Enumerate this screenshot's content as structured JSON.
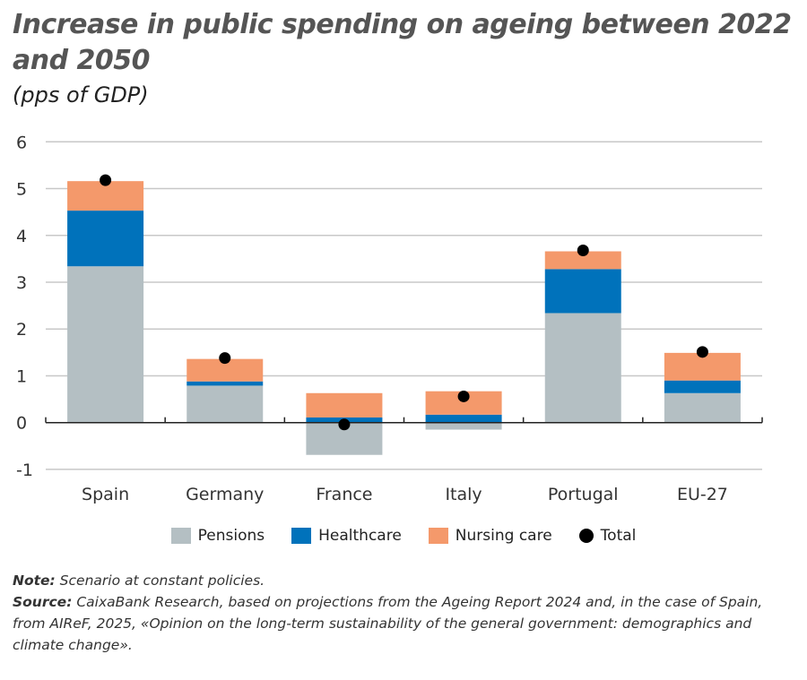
{
  "chart_data": {
    "type": "bar",
    "stacked": true,
    "title": "Increase in public spending on ageing between 2022 and 2050",
    "subtitle": "(pps of GDP)",
    "categories": [
      "Spain",
      "Germany",
      "France",
      "Italy",
      "Portugal",
      "EU-27"
    ],
    "series": [
      {
        "name": "Pensions",
        "color": "#b4bfc3",
        "values": [
          3.34,
          0.79,
          -0.69,
          -0.15,
          2.34,
          0.63
        ]
      },
      {
        "name": "Healthcare",
        "color": "#0072bb",
        "values": [
          1.19,
          0.09,
          0.11,
          0.17,
          0.94,
          0.27
        ]
      },
      {
        "name": "Nursing care",
        "color": "#f4996b",
        "values": [
          0.63,
          0.48,
          0.52,
          0.5,
          0.38,
          0.59
        ]
      }
    ],
    "total": {
      "name": "Total",
      "color": "#000000",
      "values": [
        5.18,
        1.38,
        -0.04,
        0.56,
        3.68,
        1.51
      ]
    },
    "ylim": [
      -1,
      6
    ],
    "yticks": [
      "-1",
      "0",
      "1",
      "2",
      "3",
      "4",
      "5",
      "6"
    ],
    "grid": true,
    "legend_placement": "bottom"
  },
  "notes": {
    "note_label": "Note:",
    "note_text": " Scenario at constant policies.",
    "source_label": "Source:",
    "source_text": " CaixaBank Research, based on projections from the Ageing Report 2024 and, in the case of Spain, from AIReF, 2025, «Opinion on the long-term sustainability of the general government: demographics and climate change»."
  }
}
